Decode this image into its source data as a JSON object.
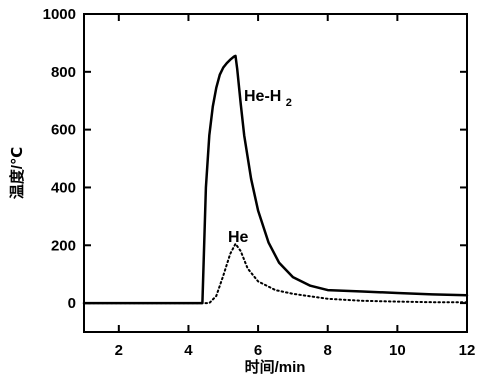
{
  "chart_data": {
    "type": "line",
    "xlabel": "时间/min",
    "ylabel": "温度/℃",
    "xlim": [
      1,
      12
    ],
    "ylim": [
      -100,
      1000
    ],
    "x_ticks": [
      2,
      4,
      6,
      8,
      10,
      12
    ],
    "y_ticks": [
      0,
      200,
      400,
      600,
      800,
      1000
    ],
    "grid": false,
    "legend": "none",
    "series": [
      {
        "name": "He-H2",
        "label_main": "He-H",
        "label_sub": "2",
        "style": "solid",
        "color": "#000000",
        "x": [
          1.0,
          4.4,
          4.5,
          4.6,
          4.7,
          4.8,
          4.9,
          5.0,
          5.1,
          5.2,
          5.3,
          5.35,
          5.4,
          5.5,
          5.6,
          5.8,
          6.0,
          6.3,
          6.6,
          7.0,
          7.5,
          8.0,
          9.0,
          10.0,
          11.0,
          12.0
        ],
        "y": [
          0,
          0,
          400,
          580,
          680,
          745,
          790,
          815,
          830,
          842,
          852,
          855,
          810,
          690,
          580,
          430,
          320,
          210,
          140,
          90,
          60,
          45,
          40,
          35,
          30,
          27
        ]
      },
      {
        "name": "He",
        "label_main": "He",
        "label_sub": "",
        "style": "dotted",
        "color": "#000000",
        "x": [
          1.0,
          4.6,
          4.8,
          5.0,
          5.2,
          5.35,
          5.5,
          5.7,
          6.0,
          6.5,
          7.0,
          8.0,
          9.0,
          10.0,
          11.0,
          12.0
        ],
        "y": [
          0,
          0,
          25,
          95,
          170,
          205,
          180,
          120,
          75,
          45,
          32,
          15,
          8,
          5,
          3,
          3
        ]
      }
    ]
  }
}
